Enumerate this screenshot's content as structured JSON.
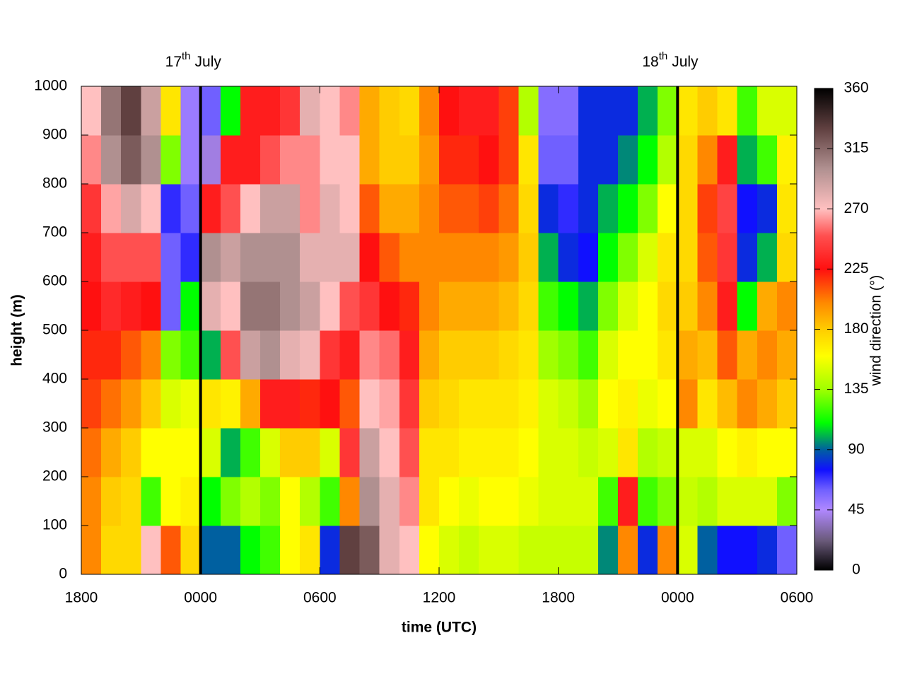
{
  "chart_data": {
    "type": "heatmap",
    "xlabel": "time (UTC)",
    "ylabel": "height (m)",
    "zlabel": "wind direction (°)",
    "xlim": [
      0,
      36
    ],
    "ylim": [
      0,
      1000
    ],
    "zlim": [
      0,
      360
    ],
    "xticks": [
      {
        "value": 0,
        "label": "1800"
      },
      {
        "value": 6,
        "label": "0000"
      },
      {
        "value": 12,
        "label": "0600"
      },
      {
        "value": 18,
        "label": "1200"
      },
      {
        "value": 24,
        "label": "1800"
      },
      {
        "value": 30,
        "label": "0000"
      },
      {
        "value": 36,
        "label": "0600"
      }
    ],
    "yticks": [
      0,
      100,
      200,
      300,
      400,
      500,
      600,
      700,
      800,
      900,
      1000
    ],
    "zticks": [
      0,
      45,
      90,
      135,
      180,
      225,
      270,
      315,
      360
    ],
    "markers": [
      {
        "x": 6,
        "label": "17",
        "suffix": "th",
        "text": "July"
      },
      {
        "x": 30,
        "label": "18",
        "suffix": "th",
        "text": "July"
      }
    ],
    "marker_color": "#000000",
    "colorscale": [
      [
        0,
        "#000000"
      ],
      [
        22,
        "#6a5a7a"
      ],
      [
        45,
        "#b088ff"
      ],
      [
        60,
        "#7060ff"
      ],
      [
        75,
        "#1010ff"
      ],
      [
        90,
        "#0060a0"
      ],
      [
        110,
        "#00ff00"
      ],
      [
        135,
        "#a0ff00"
      ],
      [
        160,
        "#ffff00"
      ],
      [
        180,
        "#ffcc00"
      ],
      [
        200,
        "#ff8800"
      ],
      [
        225,
        "#ff1010"
      ],
      [
        250,
        "#ff5050"
      ],
      [
        270,
        "#ffc0c0"
      ],
      [
        300,
        "#b09090"
      ],
      [
        330,
        "#604040"
      ],
      [
        360,
        "#000000"
      ]
    ],
    "xbins": [
      0,
      1,
      2,
      3,
      4,
      5,
      6,
      7,
      8,
      9,
      10,
      11,
      12,
      13,
      14,
      15,
      16,
      17,
      18,
      19,
      20,
      21,
      22,
      23,
      24,
      25,
      26,
      27,
      28,
      29,
      30,
      31,
      32,
      33,
      34,
      35,
      36
    ],
    "ybins": [
      0,
      100,
      200,
      300,
      400,
      500,
      600,
      700,
      800,
      900,
      1000
    ],
    "z": [
      [
        200,
        200,
        205,
        215,
        220,
        225,
        230,
        240,
        260,
        270
      ],
      [
        175,
        180,
        190,
        205,
        220,
        235,
        250,
        265,
        300,
        310
      ],
      [
        175,
        175,
        180,
        195,
        210,
        230,
        250,
        285,
        320,
        330
      ],
      [
        270,
        120,
        160,
        180,
        200,
        225,
        250,
        270,
        300,
        290
      ],
      [
        210,
        160,
        160,
        150,
        130,
        60,
        60,
        70,
        130,
        170
      ],
      [
        175,
        165,
        160,
        155,
        120,
        110,
        70,
        60,
        50,
        50
      ],
      [
        90,
        110,
        150,
        170,
        100,
        280,
        300,
        230,
        40,
        60
      ],
      [
        90,
        130,
        100,
        165,
        250,
        270,
        290,
        250,
        230,
        110
      ],
      [
        110,
        140,
        120,
        190,
        290,
        310,
        300,
        270,
        230,
        230
      ],
      [
        120,
        130,
        150,
        230,
        300,
        310,
        300,
        290,
        250,
        230
      ],
      [
        160,
        160,
        180,
        230,
        280,
        300,
        300,
        290,
        260,
        240
      ],
      [
        170,
        140,
        180,
        220,
        275,
        290,
        280,
        260,
        260,
        280
      ],
      [
        80,
        120,
        150,
        225,
        240,
        270,
        280,
        280,
        270,
        270
      ],
      [
        330,
        200,
        240,
        210,
        230,
        250,
        280,
        270,
        270,
        260
      ],
      [
        320,
        300,
        290,
        270,
        260,
        240,
        225,
        210,
        190,
        190
      ],
      [
        280,
        280,
        270,
        265,
        255,
        225,
        210,
        190,
        180,
        180
      ],
      [
        270,
        260,
        250,
        240,
        230,
        220,
        200,
        190,
        180,
        175
      ],
      [
        160,
        170,
        170,
        180,
        190,
        200,
        200,
        200,
        195,
        200
      ],
      [
        150,
        160,
        170,
        175,
        180,
        190,
        200,
        210,
        220,
        225
      ],
      [
        145,
        155,
        165,
        170,
        180,
        190,
        200,
        210,
        220,
        230
      ],
      [
        150,
        160,
        165,
        170,
        180,
        190,
        200,
        215,
        225,
        230
      ],
      [
        150,
        160,
        165,
        170,
        175,
        185,
        195,
        205,
        215,
        215
      ],
      [
        145,
        155,
        160,
        165,
        170,
        175,
        180,
        175,
        170,
        140
      ],
      [
        145,
        150,
        150,
        150,
        135,
        120,
        100,
        80,
        60,
        55
      ],
      [
        145,
        150,
        150,
        145,
        130,
        110,
        80,
        70,
        60,
        55
      ],
      [
        145,
        150,
        145,
        135,
        120,
        100,
        75,
        80,
        80,
        80
      ],
      [
        95,
        120,
        150,
        160,
        150,
        130,
        110,
        100,
        80,
        80
      ],
      [
        200,
        230,
        170,
        165,
        160,
        150,
        130,
        110,
        95,
        80
      ],
      [
        80,
        120,
        140,
        155,
        160,
        160,
        150,
        130,
        110,
        100
      ],
      [
        200,
        130,
        145,
        160,
        170,
        175,
        170,
        160,
        140,
        130
      ],
      [
        150,
        145,
        150,
        200,
        190,
        180,
        175,
        175,
        175,
        170
      ],
      [
        90,
        140,
        150,
        170,
        185,
        200,
        210,
        215,
        200,
        180
      ],
      [
        75,
        150,
        160,
        185,
        210,
        230,
        240,
        245,
        230,
        170
      ],
      [
        75,
        150,
        165,
        200,
        190,
        110,
        80,
        75,
        100,
        120
      ],
      [
        80,
        150,
        160,
        190,
        200,
        190,
        100,
        80,
        120,
        150
      ],
      [
        60,
        130,
        160,
        180,
        190,
        200,
        175,
        170,
        165,
        150
      ]
    ]
  }
}
